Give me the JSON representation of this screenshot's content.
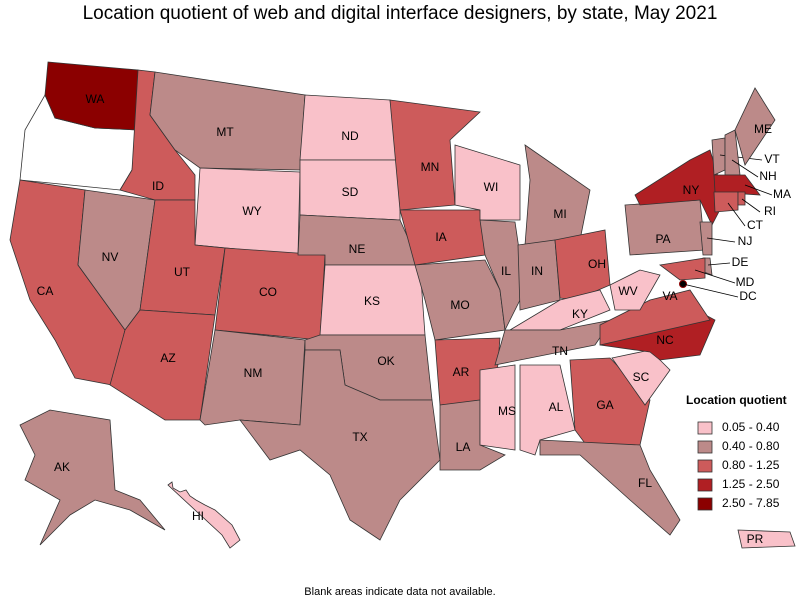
{
  "title": "Location quotient of web and digital interface designers, by state, May 2021",
  "footnote": "Blank areas indicate data not available.",
  "legend": {
    "title": "Location quotient",
    "items": [
      {
        "label": "0.05 - 0.40",
        "color": "#f9c1c9"
      },
      {
        "label": "0.40 - 0.80",
        "color": "#bc8a89"
      },
      {
        "label": "0.80 - 1.25",
        "color": "#cd5b5b"
      },
      {
        "label": "1.25 - 2.50",
        "color": "#b01f23"
      },
      {
        "label": "2.50 - 7.85",
        "color": "#8b0000"
      }
    ]
  },
  "no_data_color": "#ffffff",
  "states": [
    {
      "label": "WA",
      "color": "#8b0000"
    },
    {
      "label": "CA",
      "color": "#cd5b5b"
    },
    {
      "label": "NV",
      "color": "#bc8a89"
    },
    {
      "label": "ID",
      "color": "#cd5b5b"
    },
    {
      "label": "MT",
      "color": "#bc8a89"
    },
    {
      "label": "WY",
      "color": "#f9c1c9"
    },
    {
      "label": "UT",
      "color": "#cd5b5b"
    },
    {
      "label": "CO",
      "color": "#cd5b5b"
    },
    {
      "label": "AZ",
      "color": "#cd5b5b"
    },
    {
      "label": "NM",
      "color": "#bc8a89"
    },
    {
      "label": "ND",
      "color": "#f9c1c9"
    },
    {
      "label": "SD",
      "color": "#f9c1c9"
    },
    {
      "label": "NE",
      "color": "#bc8a89"
    },
    {
      "label": "KS",
      "color": "#f9c1c9"
    },
    {
      "label": "OK",
      "color": "#bc8a89"
    },
    {
      "label": "TX",
      "color": "#bc8a89"
    },
    {
      "label": "MN",
      "color": "#cd5b5b"
    },
    {
      "label": "IA",
      "color": "#cd5b5b"
    },
    {
      "label": "MO",
      "color": "#bc8a89"
    },
    {
      "label": "AR",
      "color": "#cd5b5b"
    },
    {
      "label": "LA",
      "color": "#bc8a89"
    },
    {
      "label": "WI",
      "color": "#f9c1c9"
    },
    {
      "label": "IL",
      "color": "#bc8a89"
    },
    {
      "label": "MI",
      "color": "#bc8a89"
    },
    {
      "label": "IN",
      "color": "#bc8a89"
    },
    {
      "label": "OH",
      "color": "#cd5b5b"
    },
    {
      "label": "KY",
      "color": "#f9c1c9"
    },
    {
      "label": "TN",
      "color": "#bc8a89"
    },
    {
      "label": "MS",
      "color": "#f9c1c9"
    },
    {
      "label": "AL",
      "color": "#f9c1c9"
    },
    {
      "label": "GA",
      "color": "#cd5b5b"
    },
    {
      "label": "FL",
      "color": "#bc8a89"
    },
    {
      "label": "SC",
      "color": "#f9c1c9"
    },
    {
      "label": "NC",
      "color": "#b01f23"
    },
    {
      "label": "VA",
      "color": "#cd5b5b"
    },
    {
      "label": "WV",
      "color": "#f9c1c9"
    },
    {
      "label": "PA",
      "color": "#bc8a89"
    },
    {
      "label": "NY",
      "color": "#b01f23"
    },
    {
      "label": "VT",
      "color": "#bc8a89"
    },
    {
      "label": "NH",
      "color": "#bc8a89"
    },
    {
      "label": "ME",
      "color": "#bc8a89"
    },
    {
      "label": "MA",
      "color": "#b01f23"
    },
    {
      "label": "CT",
      "color": "#cd5b5b"
    },
    {
      "label": "RI",
      "color": "#cd5b5b"
    },
    {
      "label": "NJ",
      "color": "#bc8a89"
    },
    {
      "label": "DE",
      "color": "#bc8a89"
    },
    {
      "label": "MD",
      "color": "#cd5b5b"
    },
    {
      "label": "DC",
      "color": "#8b0000"
    },
    {
      "label": "AK",
      "color": "#bc8a89"
    },
    {
      "label": "HI",
      "color": "#f9c1c9"
    },
    {
      "label": "PR",
      "color": "#f9c1c9"
    }
  ]
}
